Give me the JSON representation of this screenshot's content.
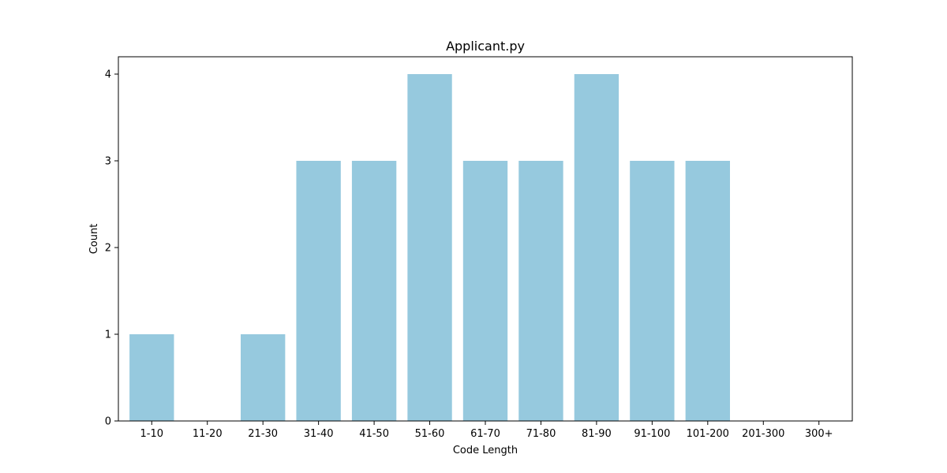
{
  "chart_data": {
    "type": "bar",
    "title": "Applicant.py",
    "xlabel": "Code Length",
    "ylabel": "Count",
    "categories": [
      "1-10",
      "11-20",
      "21-30",
      "31-40",
      "41-50",
      "51-60",
      "61-70",
      "71-80",
      "81-90",
      "91-100",
      "101-200",
      "201-300",
      "300+"
    ],
    "values": [
      1,
      0,
      1,
      3,
      3,
      4,
      3,
      3,
      4,
      3,
      3,
      0,
      0
    ],
    "ylim": [
      0,
      4.2
    ],
    "yticks": [
      0,
      1,
      2,
      3,
      4
    ],
    "bar_color": "#96c9de",
    "grid": false
  }
}
